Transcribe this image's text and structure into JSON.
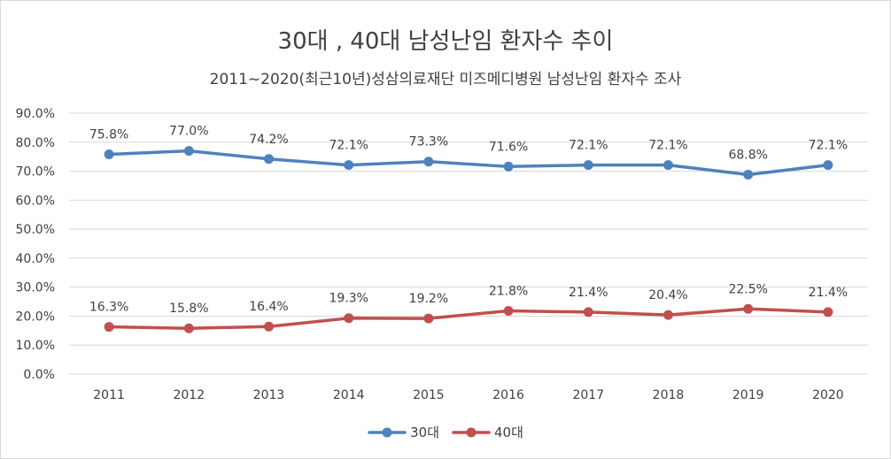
{
  "chart_data": {
    "type": "line",
    "title": "30대 , 40대 남성난임 환자수 추이",
    "subtitle": "2011~2020(최근10년)성삼의료재단 미즈메디병원 남성난임 환자수 조사",
    "categories": [
      "2011",
      "2012",
      "2013",
      "2014",
      "2015",
      "2016",
      "2017",
      "2018",
      "2019",
      "2020"
    ],
    "series": [
      {
        "name": "30대",
        "color": "#4f81bd",
        "values": [
          75.8,
          77.0,
          74.2,
          72.1,
          73.3,
          71.6,
          72.1,
          72.1,
          68.8,
          72.1
        ],
        "labels": [
          "75.8%",
          "77.0%",
          "74.2%",
          "72.1%",
          "73.3%",
          "71.6%",
          "72.1%",
          "72.1%",
          "68.8%",
          "72.1%"
        ]
      },
      {
        "name": "40대",
        "color": "#c0504d",
        "values": [
          16.3,
          15.8,
          16.4,
          19.3,
          19.2,
          21.8,
          21.4,
          20.4,
          22.5,
          21.4
        ],
        "labels": [
          "16.3%",
          "15.8%",
          "16.4%",
          "19.3%",
          "19.2%",
          "21.8%",
          "21.4%",
          "20.4%",
          "22.5%",
          "21.4%"
        ]
      }
    ],
    "ylim": [
      0,
      90
    ],
    "yticks": [
      0,
      10,
      20,
      30,
      40,
      50,
      60,
      70,
      80,
      90
    ],
    "ytick_labels": [
      "0.0%",
      "10.0%",
      "20.0%",
      "30.0%",
      "40.0%",
      "50.0%",
      "60.0%",
      "70.0%",
      "80.0%",
      "90.0%"
    ],
    "grid": true,
    "legend_position": "bottom",
    "gridline_color": "#d9d9d9"
  }
}
